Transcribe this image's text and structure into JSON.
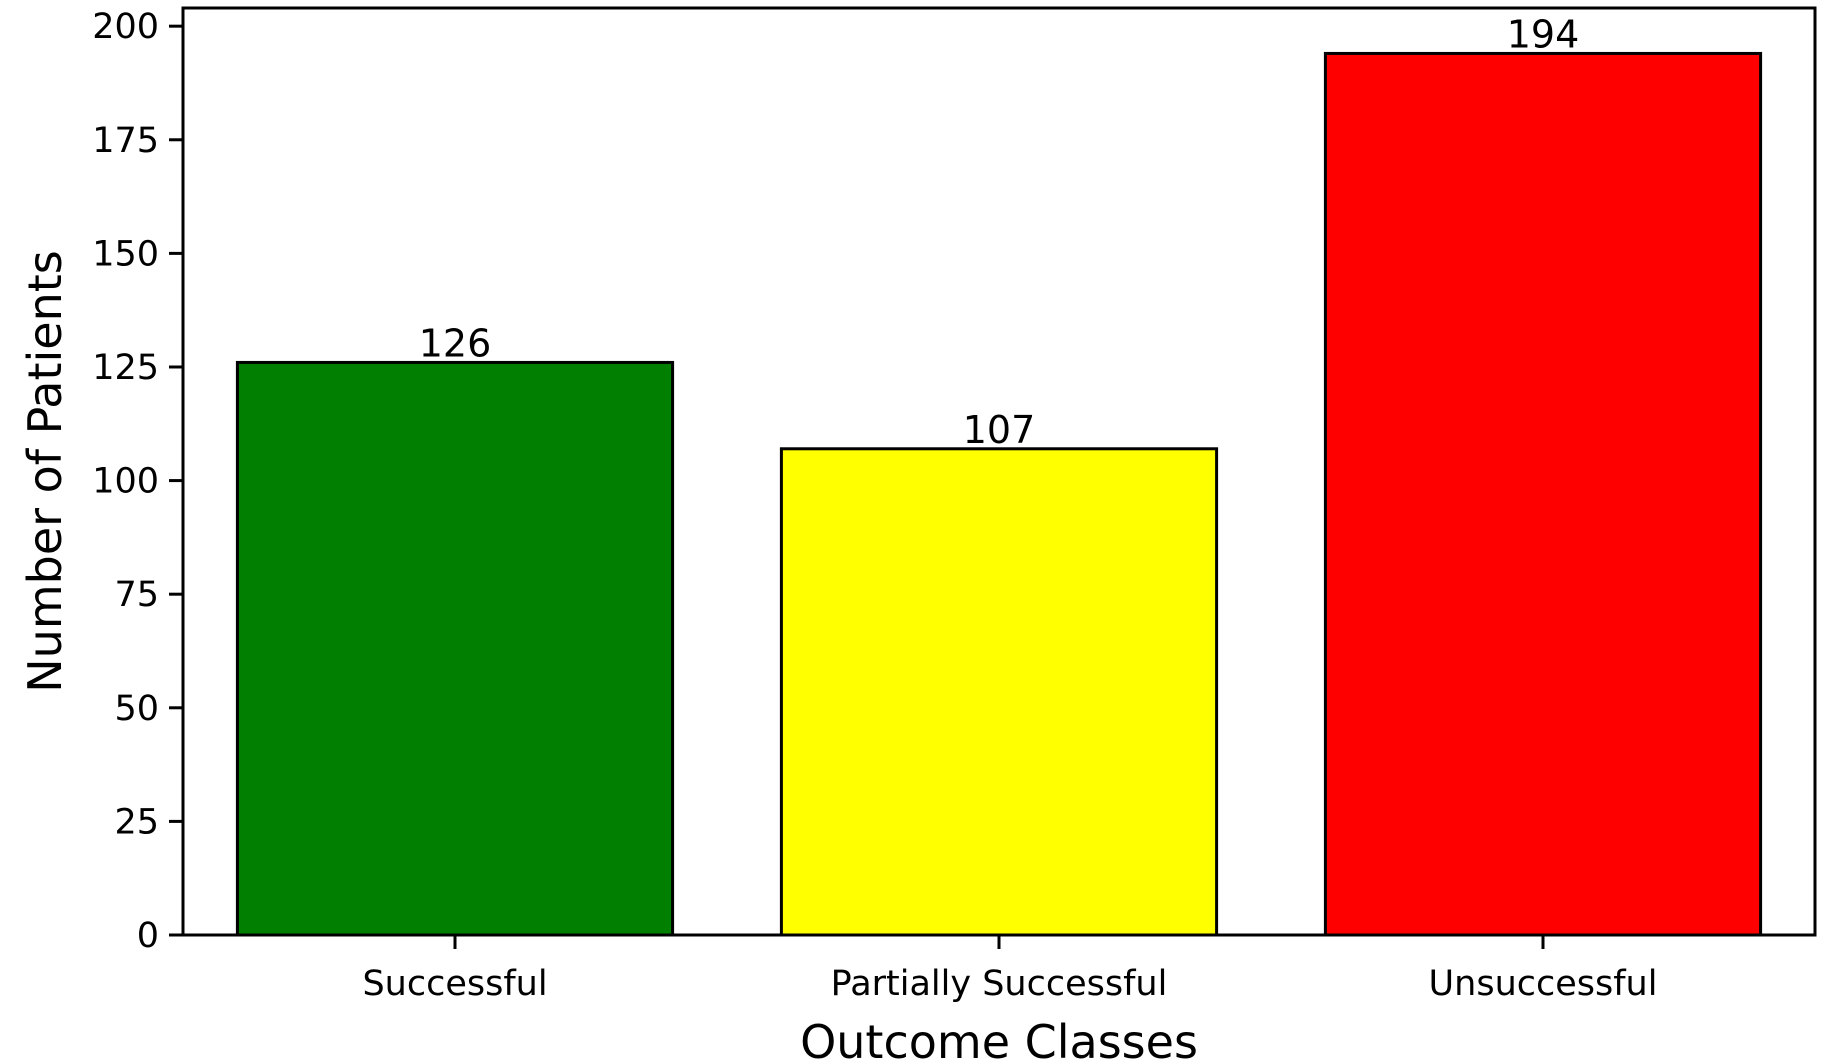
{
  "chart_data": {
    "type": "bar",
    "title": "",
    "xlabel": "Outcome Classes",
    "ylabel": "Number of Patients",
    "categories": [
      "Successful",
      "Partially Successful",
      "Unsuccessful"
    ],
    "values": [
      126,
      107,
      194
    ],
    "data_labels": [
      "126",
      "107",
      "194"
    ],
    "colors": [
      "#007f00",
      "#ffff00",
      "#ff0000"
    ],
    "edge_color": "#000000",
    "ylim": [
      0,
      204
    ],
    "yticks": [
      0,
      25,
      50,
      75,
      100,
      125,
      150,
      175,
      200
    ],
    "ytick_labels": [
      "0",
      "25",
      "50",
      "75",
      "100",
      "125",
      "150",
      "175",
      "200"
    ],
    "grid": false,
    "legend": "none"
  }
}
